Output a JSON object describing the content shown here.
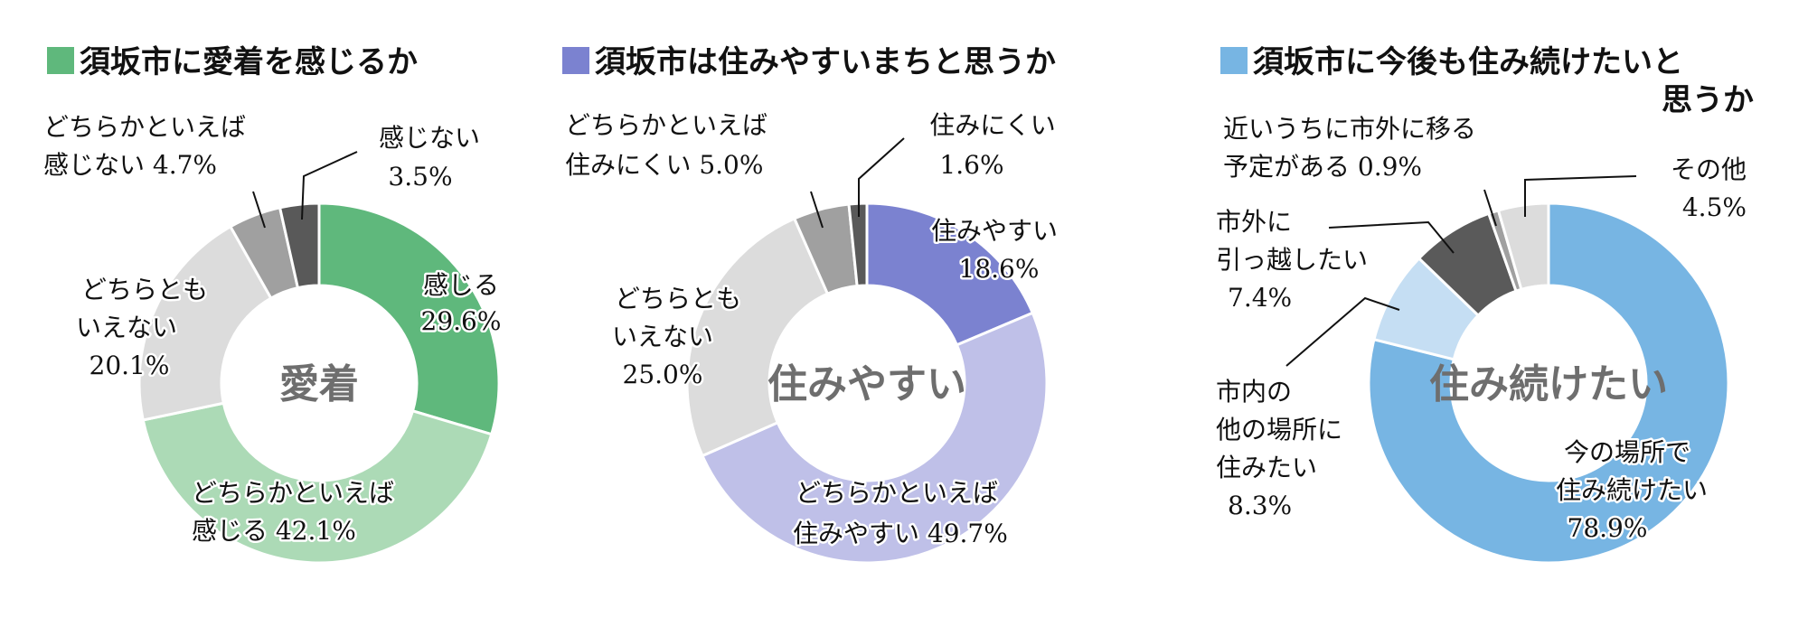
{
  "chart_data": [
    {
      "type": "pie",
      "donut": true,
      "title": "須坂市に愛着を感じるか",
      "center_label": "愛着",
      "title_color": "#5fb87c",
      "slices": [
        {
          "label": "感じる",
          "value": 29.6,
          "value_text": "29.6%",
          "color": "#5fb87c"
        },
        {
          "label": "どちらかといえば感じる",
          "value": 42.1,
          "value_text": "42.1%",
          "color": "#acdab6"
        },
        {
          "label": "どちらともいえない",
          "value": 20.1,
          "value_text": "20.1%",
          "color": "#dcdcdc"
        },
        {
          "label": "どちらかといえば感じない",
          "value": 4.7,
          "value_text": "4.7%",
          "color": "#a0a0a0"
        },
        {
          "label": "感じない",
          "value": 3.5,
          "value_text": "3.5%",
          "color": "#595959"
        }
      ],
      "label_lines": [
        "感じる",
        "どちらかといえば",
        "感じる 42.1%",
        "どちらとも",
        "いえない",
        "どちらかといえば",
        "感じない 4.7%",
        "感じない"
      ]
    },
    {
      "type": "pie",
      "donut": true,
      "title": "須坂市は住みやすいまちと思うか",
      "center_label": "住みやすい",
      "title_color": "#7b82d0",
      "slices": [
        {
          "label": "住みやすい",
          "value": 18.6,
          "value_text": "18.6%",
          "color": "#7b82d0"
        },
        {
          "label": "どちらかといえば住みやすい",
          "value": 49.7,
          "value_text": "49.7%",
          "color": "#bfc0e8"
        },
        {
          "label": "どちらともいえない",
          "value": 25.0,
          "value_text": "25.0%",
          "color": "#dcdcdc"
        },
        {
          "label": "どちらかといえば住みにくい",
          "value": 5.0,
          "value_text": "5.0%",
          "color": "#a0a0a0"
        },
        {
          "label": "住みにくい",
          "value": 1.6,
          "value_text": "1.6%",
          "color": "#595959"
        }
      ],
      "label_lines": [
        "住みやすい",
        "どちらかといえば",
        "住みやすい 49.7%",
        "どちらとも",
        "いえない",
        "どちらかといえば",
        "住みにくい 5.0%",
        "住みにくい"
      ]
    },
    {
      "type": "pie",
      "donut": true,
      "title": "須坂市に今後も住み続けたいと思うか",
      "title_lines": [
        "須坂市に今後も住み続けたいと",
        "思うか"
      ],
      "center_label": "住み続けたい",
      "title_color": "#77b5e3",
      "slices": [
        {
          "label": "今の場所で住み続けたい",
          "value": 78.9,
          "value_text": "78.9%",
          "color": "#77b5e3"
        },
        {
          "label": "市内の他の場所に住みたい",
          "value": 8.3,
          "value_text": "8.3%",
          "color": "#c5def3"
        },
        {
          "label": "市外に引っ越したい",
          "value": 7.4,
          "value_text": "7.4%",
          "color": "#5a5a5a"
        },
        {
          "label": "近いうちに市外に移る予定がある",
          "value": 0.9,
          "value_text": "0.9%",
          "color": "#a0a0a0"
        },
        {
          "label": "その他",
          "value": 4.5,
          "value_text": "4.5%",
          "color": "#dcdcdc"
        }
      ],
      "label_lines": [
        "今の場所で",
        "住み続けたい",
        "市内の",
        "他の場所に",
        "住みたい",
        "市外に",
        "引っ越したい",
        "近いうちに市外に移る",
        "予定がある 0.9%",
        "その他"
      ]
    }
  ]
}
